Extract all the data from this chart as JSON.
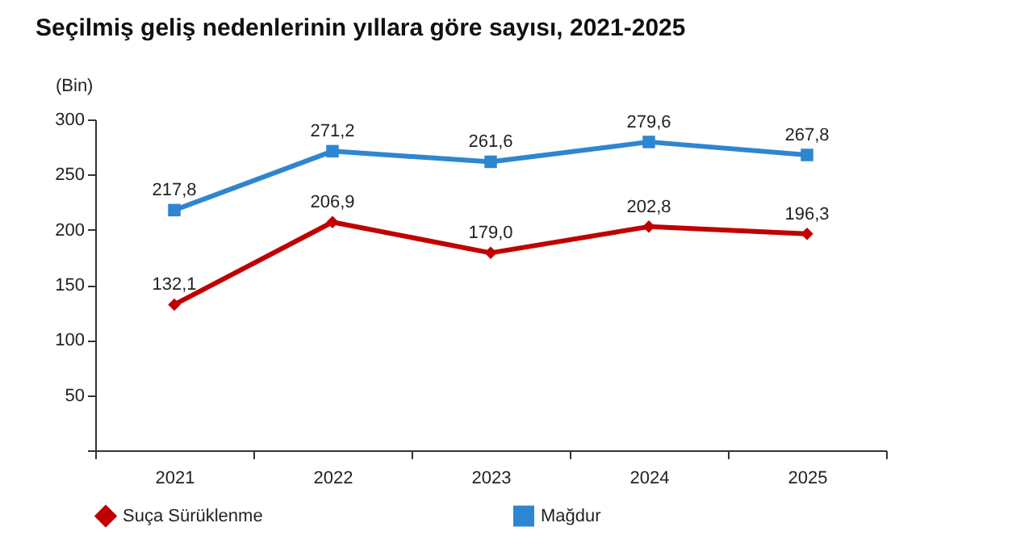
{
  "chart_data": {
    "type": "line",
    "title": "Seçilmiş geliş nedenlerinin yıllara göre sayısı, 2021-2025",
    "ylabel": "(Bin)",
    "categories": [
      "2021",
      "2022",
      "2023",
      "2024",
      "2025"
    ],
    "series": [
      {
        "name": "Suça Sürüklenme",
        "color": "#c00000",
        "marker": "diamond",
        "values": [
          132.1,
          206.9,
          179.0,
          202.8,
          196.3
        ],
        "value_labels": [
          "132,1",
          "206,9",
          "179,0",
          "202,8",
          "196,3"
        ]
      },
      {
        "name": "Mağdur",
        "color": "#2e86d0",
        "marker": "square",
        "values": [
          217.8,
          271.2,
          261.6,
          279.6,
          267.8
        ],
        "value_labels": [
          "217,8",
          "271,2",
          "261,6",
          "279,6",
          "267,8"
        ]
      }
    ],
    "ylim": [
      0,
      300
    ],
    "yticks": [
      {
        "value": 0,
        "label": null
      },
      50,
      100,
      150,
      200,
      250,
      300
    ],
    "grid": false,
    "legend": "bottom"
  }
}
